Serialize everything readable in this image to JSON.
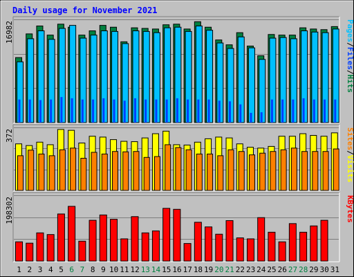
{
  "title": "Daily usage for November 2021",
  "colors": {
    "background": "#c0c0c0",
    "title": "#0000ff",
    "hits": "#008040",
    "files": "#00c0ff",
    "pages": "#0040ff",
    "visits": "#ffff00",
    "sites": "#ff8000",
    "kbytes": "#ff0000",
    "weekend_label": "#008040"
  },
  "chart_data": [
    {
      "type": "bar",
      "panel": "requests",
      "ymax_label": "16982",
      "ylim": [
        0,
        16982
      ],
      "categories": [
        "1",
        "2",
        "3",
        "4",
        "5",
        "6",
        "7",
        "8",
        "9",
        "10",
        "11",
        "12",
        "13",
        "14",
        "15",
        "16",
        "17",
        "18",
        "19",
        "20",
        "21",
        "22",
        "23",
        "24",
        "25",
        "26",
        "27",
        "28",
        "29",
        "30",
        "31"
      ],
      "weekend_days": [
        "6",
        "7",
        "13",
        "14",
        "20",
        "21",
        "27",
        "28"
      ],
      "series": [
        {
          "name": "Hits",
          "values": [
            10700,
            14600,
            15900,
            14400,
            16200,
            15700,
            14400,
            15100,
            16000,
            15700,
            13300,
            15600,
            15500,
            15400,
            16100,
            16200,
            15400,
            16600,
            15700,
            13600,
            12800,
            14800,
            12600,
            11000,
            14500,
            14400,
            14400,
            15600,
            15400,
            15300,
            15800
          ]
        },
        {
          "name": "Files",
          "values": [
            10000,
            13800,
            15100,
            13700,
            15500,
            16000,
            13900,
            14400,
            15100,
            15000,
            13000,
            15100,
            15000,
            14800,
            15600,
            15700,
            15000,
            15900,
            15200,
            13100,
            12200,
            14100,
            12300,
            10400,
            13900,
            14000,
            13800,
            15100,
            14900,
            14800,
            15400
          ]
        },
        {
          "name": "Pages",
          "values": [
            3800,
            3800,
            3700,
            3800,
            4200,
            4000,
            3800,
            3800,
            4000,
            3800,
            3600,
            4000,
            3800,
            3800,
            3800,
            4000,
            3800,
            3800,
            3800,
            3600,
            3500,
            3000,
            1600,
            1700,
            3800,
            3800,
            3800,
            4000,
            3800,
            3800,
            3800
          ]
        }
      ]
    },
    {
      "type": "bar",
      "panel": "visitors",
      "ymax_label": "372",
      "ylim": [
        0,
        372
      ],
      "series": [
        {
          "name": "Visits",
          "values": [
            275,
            265,
            285,
            270,
            360,
            355,
            280,
            320,
            315,
            300,
            290,
            288,
            310,
            335,
            350,
            270,
            268,
            285,
            305,
            315,
            310,
            275,
            255,
            250,
            260,
            320,
            320,
            335,
            325,
            320,
            340
          ]
        },
        {
          "name": "Sites",
          "values": [
            205,
            238,
            215,
            205,
            240,
            250,
            190,
            225,
            215,
            230,
            228,
            230,
            195,
            200,
            270,
            253,
            240,
            215,
            215,
            205,
            240,
            230,
            210,
            220,
            230,
            240,
            250,
            230,
            230,
            230,
            245
          ]
        }
      ]
    },
    {
      "type": "bar",
      "panel": "kbytes",
      "ymax_label": "198302",
      "ylim": [
        0,
        198302
      ],
      "series": [
        {
          "name": "KBytes",
          "values": [
            58000,
            54000,
            85000,
            80000,
            142000,
            165000,
            60000,
            123000,
            139000,
            126000,
            67000,
            134000,
            85000,
            91000,
            159000,
            156000,
            53000,
            117000,
            103000,
            81000,
            122000,
            70000,
            67000,
            131000,
            87000,
            58000,
            113000,
            87000,
            106000,
            123000,
            0
          ]
        }
      ]
    }
  ],
  "legends": {
    "requests": [
      {
        "name": "Pages",
        "color": "#00c0ff"
      },
      {
        "name": "/",
        "color": "#000000"
      },
      {
        "name": "Files",
        "color": "#0040ff"
      },
      {
        "name": "/",
        "color": "#000000"
      },
      {
        "name": "Hits",
        "color": "#008040"
      }
    ],
    "visitors": [
      {
        "name": "Sites",
        "color": "#ff8000"
      },
      {
        "name": "/",
        "color": "#000000"
      },
      {
        "name": "Visits",
        "color": "#ffff00"
      }
    ],
    "kbytes": [
      {
        "name": "KBytes",
        "color": "#ff0000"
      }
    ]
  }
}
